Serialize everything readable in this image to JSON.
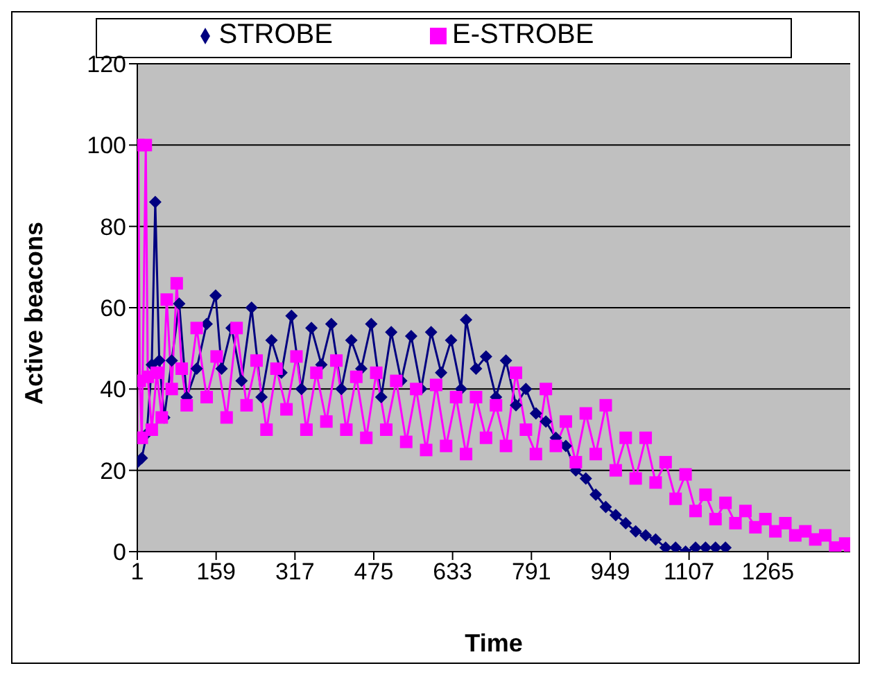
{
  "chart_data": {
    "type": "line",
    "xlabel": "Time",
    "ylabel": "Active beacons",
    "xlim": [
      1,
      1430
    ],
    "xticks": [
      1,
      159,
      317,
      475,
      633,
      791,
      949,
      1107,
      1265
    ],
    "ylim": [
      0,
      120
    ],
    "yticks": [
      0,
      20,
      40,
      60,
      80,
      100,
      120
    ],
    "grid": "y",
    "legend": "top",
    "line_style": "solid",
    "series": [
      {
        "name": "STROBE",
        "color": "#000080",
        "marker": "diamond",
        "x": [
          1,
          10,
          20,
          30,
          37,
          45,
          55,
          70,
          85,
          100,
          120,
          140,
          158,
          170,
          190,
          210,
          230,
          250,
          270,
          290,
          310,
          330,
          350,
          370,
          390,
          410,
          430,
          450,
          470,
          490,
          510,
          530,
          550,
          570,
          590,
          610,
          630,
          650,
          660,
          680,
          700,
          720,
          740,
          760,
          780,
          800,
          820,
          840,
          860,
          880,
          900,
          920,
          940,
          960,
          980,
          1000,
          1020,
          1040,
          1060,
          1080,
          1100,
          1120,
          1140,
          1160,
          1180
        ],
        "values": [
          22,
          23,
          29,
          46,
          86,
          47,
          33,
          47,
          61,
          38,
          45,
          56,
          63,
          45,
          55,
          42,
          60,
          38,
          52,
          44,
          58,
          40,
          55,
          46,
          56,
          40,
          52,
          45,
          56,
          38,
          54,
          42,
          53,
          40,
          54,
          44,
          52,
          40,
          57,
          45,
          48,
          38,
          47,
          36,
          40,
          34,
          32,
          28,
          26,
          20,
          18,
          14,
          11,
          9,
          7,
          5,
          4,
          3,
          1,
          1,
          0,
          1,
          1,
          1,
          1
        ]
      },
      {
        "name": "E-STROBE",
        "color": "#ff00ff",
        "marker": "square",
        "x": [
          1,
          3,
          6,
          10,
          18,
          22,
          30,
          40,
          50,
          60,
          70,
          80,
          90,
          100,
          120,
          140,
          160,
          180,
          200,
          220,
          240,
          260,
          280,
          300,
          320,
          340,
          360,
          380,
          400,
          420,
          440,
          460,
          480,
          500,
          520,
          540,
          560,
          580,
          600,
          620,
          640,
          660,
          680,
          700,
          720,
          740,
          760,
          780,
          800,
          820,
          840,
          860,
          880,
          900,
          920,
          940,
          960,
          980,
          1000,
          1020,
          1040,
          1060,
          1080,
          1100,
          1120,
          1140,
          1160,
          1180,
          1200,
          1220,
          1240,
          1260,
          1280,
          1300,
          1320,
          1340,
          1360,
          1380,
          1400,
          1420,
          1430
        ],
        "values": [
          28,
          100,
          42,
          28,
          100,
          43,
          30,
          44,
          33,
          62,
          40,
          66,
          45,
          36,
          55,
          38,
          48,
          33,
          55,
          36,
          47,
          30,
          45,
          35,
          48,
          30,
          44,
          32,
          47,
          30,
          43,
          28,
          44,
          30,
          42,
          27,
          40,
          25,
          41,
          26,
          38,
          24,
          38,
          28,
          36,
          26,
          44,
          30,
          24,
          40,
          26,
          32,
          22,
          34,
          24,
          36,
          20,
          28,
          18,
          28,
          17,
          22,
          13,
          19,
          10,
          14,
          8,
          12,
          7,
          10,
          6,
          8,
          5,
          7,
          4,
          5,
          3,
          4,
          1,
          2,
          1
        ]
      }
    ]
  }
}
